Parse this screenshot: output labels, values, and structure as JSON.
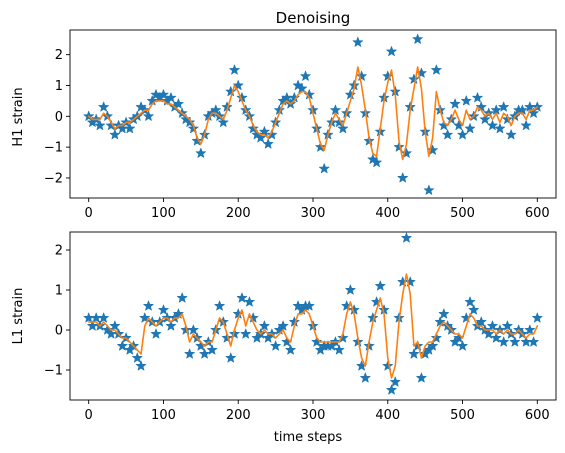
{
  "chart_data": [
    {
      "type": "scatter",
      "title": "Denoising",
      "xlabel": "",
      "ylabel": "H1 strain",
      "xlim": [
        -25,
        625
      ],
      "ylim": [
        -2.65,
        2.8
      ],
      "xticks": [
        0,
        100,
        200,
        300,
        400,
        500,
        600
      ],
      "xtick_labels": [
        "0",
        "100",
        "200",
        "300",
        "400",
        "500",
        "600"
      ],
      "yticks": [
        -2,
        -1,
        0,
        1,
        2
      ],
      "ytick_labels": [
        "−2",
        "−1",
        "0",
        "1",
        "2"
      ],
      "grid": false,
      "series": [
        {
          "marker": "star",
          "color": "#1f77b4",
          "x": [
            0,
            5,
            10,
            15,
            20,
            25,
            30,
            35,
            40,
            45,
            50,
            55,
            60,
            65,
            70,
            75,
            80,
            85,
            90,
            95,
            100,
            105,
            110,
            115,
            120,
            125,
            130,
            135,
            140,
            145,
            150,
            155,
            160,
            165,
            170,
            175,
            180,
            185,
            190,
            195,
            200,
            205,
            210,
            215,
            220,
            225,
            230,
            235,
            240,
            245,
            250,
            255,
            260,
            265,
            270,
            275,
            280,
            285,
            290,
            295,
            300,
            305,
            310,
            315,
            320,
            325,
            330,
            335,
            340,
            345,
            350,
            355,
            360,
            365,
            370,
            375,
            380,
            385,
            390,
            395,
            400,
            405,
            410,
            415,
            420,
            425,
            430,
            435,
            440,
            445,
            450,
            455,
            460,
            465,
            470,
            475,
            480,
            485,
            490,
            495,
            500,
            505,
            510,
            515,
            520,
            525,
            530,
            535,
            540,
            545,
            550,
            555,
            560,
            565,
            570,
            575,
            580,
            585,
            590,
            595,
            600
          ],
          "y": [
            0.0,
            -0.2,
            -0.1,
            -0.3,
            0.3,
            0.0,
            -0.3,
            -0.6,
            -0.3,
            -0.4,
            -0.2,
            -0.4,
            -0.1,
            0.0,
            0.3,
            0.2,
            0.0,
            0.5,
            0.7,
            0.6,
            0.7,
            0.5,
            0.6,
            0.3,
            0.4,
            0.1,
            -0.1,
            -0.2,
            -0.4,
            -0.8,
            -1.2,
            -0.6,
            0.0,
            0.1,
            0.2,
            0.0,
            -0.2,
            0.3,
            0.8,
            1.5,
            1.0,
            0.6,
            0.2,
            0.0,
            -0.4,
            -0.6,
            -0.7,
            -0.5,
            -0.9,
            -0.6,
            -0.2,
            0.2,
            0.5,
            0.6,
            0.4,
            0.6,
            1.0,
            0.9,
            1.3,
            0.7,
            0.2,
            -0.4,
            -1.0,
            -1.7,
            -0.6,
            -0.2,
            0.2,
            -0.2,
            -0.4,
            0.1,
            0.7,
            1.0,
            2.4,
            1.3,
            0.1,
            -0.8,
            -1.4,
            -1.5,
            -0.5,
            0.6,
            1.3,
            2.1,
            0.8,
            -1.0,
            -2.0,
            -1.2,
            0.3,
            1.2,
            2.5,
            1.4,
            -0.5,
            -2.4,
            -1.1,
            1.5,
            0.2,
            -0.3,
            -0.6,
            -0.1,
            0.4,
            -0.3,
            -0.6,
            0.5,
            -0.4,
            0.0,
            0.6,
            0.3,
            -0.1,
            0.1,
            -0.3,
            0.2,
            -0.4,
            0.3,
            -0.1,
            -0.6,
            0.0,
            0.2,
            0.2,
            -0.3,
            0.3,
            0.1,
            0.3
          ]
        },
        {
          "marker": "line",
          "color": "#ff7f0e",
          "x": [
            0,
            5,
            10,
            15,
            20,
            25,
            30,
            35,
            40,
            45,
            50,
            55,
            60,
            65,
            70,
            75,
            80,
            85,
            90,
            95,
            100,
            105,
            110,
            115,
            120,
            125,
            130,
            135,
            140,
            145,
            150,
            155,
            160,
            165,
            170,
            175,
            180,
            185,
            190,
            195,
            200,
            205,
            210,
            215,
            220,
            225,
            230,
            235,
            240,
            245,
            250,
            255,
            260,
            265,
            270,
            275,
            280,
            285,
            290,
            295,
            300,
            305,
            310,
            315,
            320,
            325,
            330,
            335,
            340,
            345,
            350,
            355,
            360,
            365,
            370,
            375,
            380,
            385,
            390,
            395,
            400,
            405,
            410,
            415,
            420,
            425,
            430,
            435,
            440,
            445,
            450,
            455,
            460,
            465,
            470,
            475,
            480,
            485,
            490,
            495,
            500,
            505,
            510,
            515,
            520,
            525,
            530,
            535,
            540,
            545,
            550,
            555,
            560,
            565,
            570,
            575,
            580,
            585,
            590,
            595,
            600
          ],
          "y": [
            0.0,
            -0.1,
            -0.1,
            -0.1,
            0.1,
            0.0,
            -0.2,
            -0.4,
            -0.3,
            -0.3,
            -0.2,
            -0.2,
            -0.1,
            0.0,
            0.1,
            0.2,
            0.2,
            0.4,
            0.5,
            0.5,
            0.5,
            0.4,
            0.4,
            0.3,
            0.2,
            0.1,
            0.0,
            -0.1,
            -0.3,
            -0.7,
            -0.9,
            -0.6,
            -0.1,
            0.1,
            0.1,
            0.0,
            -0.1,
            0.2,
            0.6,
            1.0,
            0.8,
            0.5,
            0.2,
            0.0,
            -0.3,
            -0.5,
            -0.6,
            -0.6,
            -0.7,
            -0.5,
            -0.2,
            0.1,
            0.4,
            0.5,
            0.4,
            0.5,
            0.7,
            0.8,
            0.8,
            0.6,
            0.1,
            -0.4,
            -0.9,
            -1.1,
            -0.6,
            -0.2,
            0.1,
            -0.1,
            -0.3,
            0.1,
            0.5,
            0.9,
            1.6,
            1.0,
            0.2,
            -0.7,
            -1.2,
            -1.3,
            -0.4,
            0.5,
            1.1,
            1.5,
            0.7,
            -0.8,
            -1.4,
            -0.9,
            0.2,
            0.9,
            1.6,
            0.9,
            -0.5,
            -1.3,
            -0.7,
            0.8,
            0.2,
            -0.2,
            -0.3,
            -0.1,
            0.2,
            -0.1,
            -0.3,
            0.2,
            -0.1,
            0.0,
            0.3,
            0.2,
            0.0,
            0.1,
            -0.1,
            0.1,
            -0.2,
            0.1,
            0.0,
            -0.3,
            0.0,
            0.1,
            0.1,
            -0.1,
            0.2,
            0.2,
            0.3
          ]
        }
      ]
    },
    {
      "type": "scatter",
      "title": "",
      "xlabel": "time steps",
      "ylabel": "L1 strain",
      "xlim": [
        -25,
        625
      ],
      "ylim": [
        -1.75,
        2.45
      ],
      "xticks": [
        0,
        100,
        200,
        300,
        400,
        500,
        600
      ],
      "xtick_labels": [
        "0",
        "100",
        "200",
        "300",
        "400",
        "500",
        "600"
      ],
      "yticks": [
        -1,
        0,
        1,
        2
      ],
      "ytick_labels": [
        "−1",
        "0",
        "1",
        "2"
      ],
      "grid": false,
      "series": [
        {
          "marker": "star",
          "color": "#1f77b4",
          "x": [
            0,
            5,
            10,
            15,
            20,
            25,
            30,
            35,
            40,
            45,
            50,
            55,
            60,
            65,
            70,
            75,
            80,
            85,
            90,
            95,
            100,
            105,
            110,
            115,
            120,
            125,
            130,
            135,
            140,
            145,
            150,
            155,
            160,
            165,
            170,
            175,
            180,
            185,
            190,
            195,
            200,
            205,
            210,
            215,
            220,
            225,
            230,
            235,
            240,
            245,
            250,
            255,
            260,
            265,
            270,
            275,
            280,
            285,
            290,
            295,
            300,
            305,
            310,
            315,
            320,
            325,
            330,
            335,
            340,
            345,
            350,
            355,
            360,
            365,
            370,
            375,
            380,
            385,
            390,
            395,
            400,
            405,
            410,
            415,
            420,
            425,
            430,
            435,
            440,
            445,
            450,
            455,
            460,
            465,
            470,
            475,
            480,
            485,
            490,
            495,
            500,
            505,
            510,
            515,
            520,
            525,
            530,
            535,
            540,
            545,
            550,
            555,
            560,
            565,
            570,
            575,
            580,
            585,
            590,
            595,
            600
          ],
          "y": [
            0.3,
            0.1,
            0.3,
            0.1,
            0.3,
            0.0,
            -0.1,
            0.1,
            -0.1,
            -0.4,
            -0.2,
            -0.5,
            -0.4,
            -0.7,
            -0.9,
            0.3,
            0.6,
            0.2,
            -0.1,
            0.2,
            0.5,
            0.3,
            0.1,
            0.3,
            0.4,
            0.8,
            0.0,
            -0.6,
            0.0,
            -0.2,
            -0.4,
            -0.6,
            -0.3,
            -0.5,
            0.0,
            0.6,
            0.2,
            -0.2,
            -0.7,
            -0.1,
            0.4,
            0.8,
            -0.1,
            0.7,
            0.3,
            -0.2,
            -0.1,
            0.1,
            -0.2,
            -0.1,
            -0.4,
            0.0,
            0.1,
            -0.3,
            -0.5,
            0.2,
            0.6,
            0.5,
            0.6,
            0.6,
            0.1,
            -0.3,
            -0.5,
            -0.4,
            -0.4,
            -0.4,
            -0.3,
            -0.5,
            -0.2,
            0.6,
            1.0,
            0.5,
            -0.3,
            -0.9,
            -1.2,
            -0.4,
            0.3,
            0.7,
            1.1,
            0.5,
            -0.9,
            -1.5,
            -1.3,
            0.3,
            1.2,
            2.3,
            1.2,
            -0.6,
            -0.4,
            -1.2,
            -0.6,
            -0.5,
            -0.4,
            -0.2,
            0.2,
            0.4,
            0.1,
            0.0,
            -0.3,
            -0.2,
            -0.4,
            0.3,
            0.7,
            0.5,
            0.1,
            0.2,
            0.0,
            -0.1,
            0.1,
            -0.2,
            0.0,
            -0.3,
            0.1,
            -0.1,
            -0.3,
            0.0,
            -0.1,
            -0.3,
            0.0,
            -0.3,
            0.3
          ]
        },
        {
          "marker": "line",
          "color": "#ff7f0e",
          "x": [
            0,
            5,
            10,
            15,
            20,
            25,
            30,
            35,
            40,
            45,
            50,
            55,
            60,
            65,
            70,
            75,
            80,
            85,
            90,
            95,
            100,
            105,
            110,
            115,
            120,
            125,
            130,
            135,
            140,
            145,
            150,
            155,
            160,
            165,
            170,
            175,
            180,
            185,
            190,
            195,
            200,
            205,
            210,
            215,
            220,
            225,
            230,
            235,
            240,
            245,
            250,
            255,
            260,
            265,
            270,
            275,
            280,
            285,
            290,
            295,
            300,
            305,
            310,
            315,
            320,
            325,
            330,
            335,
            340,
            345,
            350,
            355,
            360,
            365,
            370,
            375,
            380,
            385,
            390,
            395,
            400,
            405,
            410,
            415,
            420,
            425,
            430,
            435,
            440,
            445,
            450,
            455,
            460,
            465,
            470,
            475,
            480,
            485,
            490,
            495,
            500,
            505,
            510,
            515,
            520,
            525,
            530,
            535,
            540,
            545,
            550,
            555,
            560,
            565,
            570,
            575,
            580,
            585,
            590,
            595,
            600
          ],
          "y": [
            0.2,
            0.2,
            0.2,
            0.1,
            0.2,
            0.1,
            0.0,
            0.0,
            -0.1,
            -0.2,
            -0.2,
            -0.3,
            -0.4,
            -0.5,
            -0.6,
            0.1,
            0.3,
            0.2,
            0.1,
            0.2,
            0.3,
            0.3,
            0.2,
            0.3,
            0.3,
            0.4,
            0.1,
            -0.3,
            -0.1,
            -0.2,
            -0.3,
            -0.4,
            -0.3,
            -0.3,
            0.0,
            0.3,
            0.2,
            -0.1,
            -0.4,
            0.0,
            0.3,
            0.5,
            0.1,
            0.4,
            0.2,
            0.0,
            -0.1,
            0.0,
            -0.1,
            -0.1,
            -0.2,
            -0.1,
            0.0,
            -0.2,
            -0.3,
            0.1,
            0.4,
            0.4,
            0.5,
            0.4,
            0.1,
            -0.2,
            -0.3,
            -0.3,
            -0.3,
            -0.3,
            -0.3,
            -0.3,
            -0.1,
            0.4,
            0.7,
            0.4,
            -0.2,
            -0.7,
            -0.9,
            -0.3,
            0.2,
            0.5,
            0.8,
            0.4,
            -0.7,
            -1.2,
            -0.9,
            0.2,
            0.9,
            1.4,
            0.9,
            -0.4,
            -0.3,
            -0.7,
            -0.4,
            -0.3,
            -0.3,
            -0.1,
            0.1,
            0.2,
            0.1,
            0.0,
            -0.1,
            -0.1,
            -0.2,
            0.1,
            0.4,
            0.3,
            0.1,
            0.1,
            0.0,
            0.0,
            0.0,
            -0.1,
            0.0,
            -0.1,
            0.0,
            -0.1,
            -0.1,
            0.0,
            -0.1,
            -0.2,
            -0.1,
            -0.1,
            0.1
          ]
        }
      ]
    }
  ]
}
